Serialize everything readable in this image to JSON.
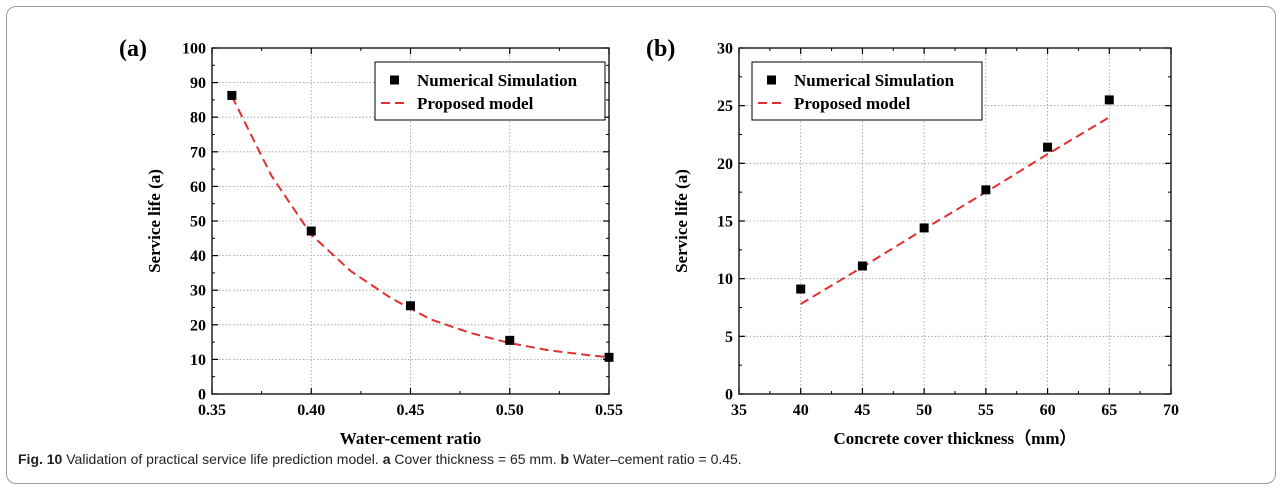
{
  "chart_data": [
    {
      "type": "scatter",
      "panel_label": "(a)",
      "xlabel": "Water-cement ratio",
      "ylabel": "Service life (a)",
      "xlim": [
        0.35,
        0.55
      ],
      "ylim": [
        0,
        100
      ],
      "xticks": [
        "0.35",
        "0.40",
        "0.45",
        "0.50",
        "0.55"
      ],
      "yticks": [
        "0",
        "10",
        "20",
        "30",
        "40",
        "50",
        "60",
        "70",
        "80",
        "90",
        "100"
      ],
      "grid": true,
      "legend_position": "top-right",
      "series": [
        {
          "name": "Numerical Simulation",
          "style": "marker",
          "color": "#000000",
          "x": [
            0.36,
            0.4,
            0.45,
            0.5,
            0.55
          ],
          "y": [
            86.3,
            47.1,
            25.5,
            15.5,
            10.6
          ]
        },
        {
          "name": "Proposed model",
          "style": "dashed-line",
          "color": "#e03030",
          "x": [
            0.36,
            0.38,
            0.4,
            0.42,
            0.44,
            0.45,
            0.46,
            0.48,
            0.5,
            0.52,
            0.54,
            0.55
          ],
          "y": [
            86.0,
            63.0,
            46.0,
            35.5,
            27.8,
            24.7,
            21.6,
            17.7,
            14.7,
            12.6,
            11.2,
            10.6
          ]
        }
      ]
    },
    {
      "type": "scatter",
      "panel_label": "(b)",
      "xlabel": "Concrete cover thickness（mm）",
      "ylabel": "Service life (a)",
      "xlim": [
        35,
        70
      ],
      "ylim": [
        0,
        30
      ],
      "xticks": [
        "35",
        "40",
        "45",
        "50",
        "55",
        "60",
        "65",
        "70"
      ],
      "yticks": [
        "0",
        "5",
        "10",
        "15",
        "20",
        "25",
        "30"
      ],
      "grid": true,
      "legend_position": "top-left",
      "series": [
        {
          "name": "Numerical Simulation",
          "style": "marker",
          "color": "#000000",
          "x": [
            40,
            45,
            50,
            55,
            60,
            65
          ],
          "y": [
            9.1,
            11.1,
            14.4,
            17.7,
            21.4,
            25.5
          ]
        },
        {
          "name": "Proposed model",
          "style": "dashed-line",
          "color": "#e03030",
          "x": [
            40,
            45,
            50,
            55,
            60,
            65
          ],
          "y": [
            7.8,
            11.0,
            14.3,
            17.5,
            20.8,
            24.0
          ]
        }
      ]
    }
  ],
  "caption": {
    "label": "Fig. 10",
    "text": "Validation of practical service life prediction model.",
    "part_a_label": "a",
    "part_a_text": "Cover thickness = 65 mm.",
    "part_b_label": "b",
    "part_b_text": "Water–cement ratio = 0.45."
  }
}
